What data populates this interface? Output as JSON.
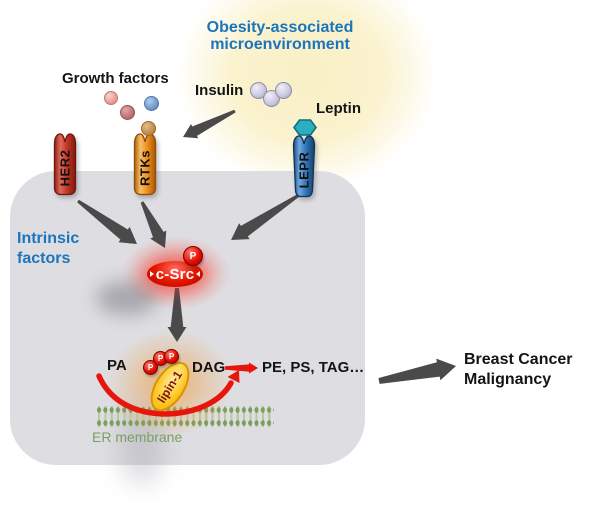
{
  "diagram": {
    "title": {
      "line1": "Obesity-associated",
      "line2": "microenvironment"
    },
    "extracellular": {
      "growth_factors_label": "Growth factors",
      "insulin_label": "Insulin",
      "leptin_label": "Leptin"
    },
    "receptors": [
      {
        "label": "HER2",
        "color": "#C23A2A"
      },
      {
        "label": "RTKs",
        "color": "#EE8F1D"
      },
      {
        "label": "LEPR",
        "color": "#2E74B5"
      }
    ],
    "intracellular": {
      "intrinsic_line1": "Intrinsic",
      "intrinsic_line2": "factors",
      "kinase_label": "c-Src",
      "phosphate_label": "P",
      "enzyme_label": "lipin-1",
      "substrate_label": "PA",
      "product_label": "DAG",
      "downstream_products_label": "PE, PS, TAG…",
      "membrane_label": "ER membrane"
    },
    "outcome": {
      "line1": "Breast Cancer",
      "line2": "Malignancy"
    },
    "colors": {
      "accent_blue": "#1B75BC",
      "cell_gray": "#DEDEE2",
      "microenvironment_glow": "#FAF0C6",
      "her2_red": "#C23A2A",
      "rtks_orange": "#EE8F1D",
      "lepr_blue": "#2E74B5",
      "leptin_teal": "#2AAEC0",
      "csrc_red": "#E81800",
      "lipin_gold": "#FFC92A",
      "phosphate_red": "#E31000",
      "red_arrow": "#E8150D",
      "gray_arrow": "#4A4A4A",
      "membrane_green": "#7C9D5F"
    }
  }
}
